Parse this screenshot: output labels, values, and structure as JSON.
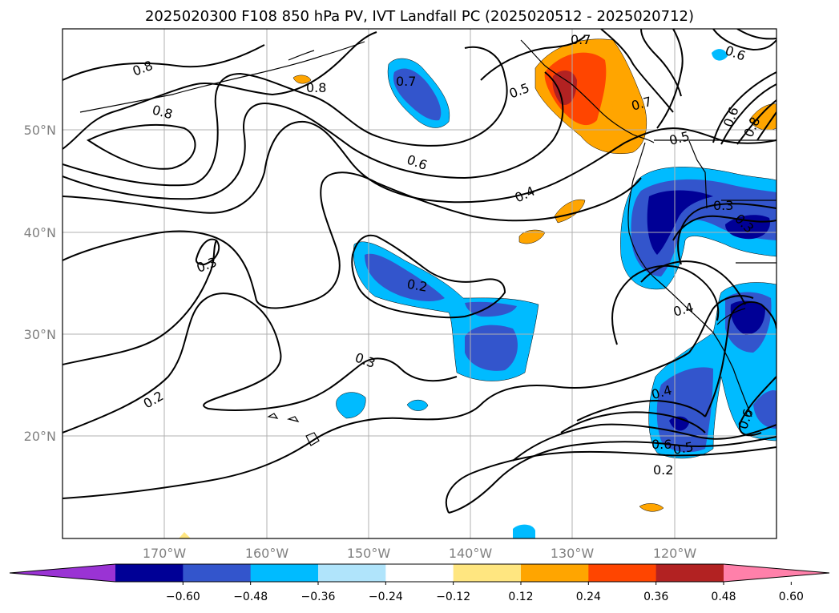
{
  "title": "2025020300 F108 850 hPa PV, IVT Landfall PC (2025020512 - 2025020712)",
  "axes": {
    "lat_labels": [
      "50°N",
      "40°N",
      "30°N",
      "20°N"
    ],
    "lon_labels": [
      "170°W",
      "160°W",
      "150°W",
      "140°W",
      "130°W",
      "120°W"
    ]
  },
  "colorbar": {
    "ticks": [
      "−0.60",
      "−0.48",
      "−0.36",
      "−0.24",
      "−0.12",
      "0.12",
      "0.24",
      "0.36",
      "0.48",
      "0.60"
    ],
    "colors": [
      "#9a33d4",
      "#000096",
      "#3355cc",
      "#00bbff",
      "#b0e4fb",
      "#ffffff",
      "#ffe680",
      "#ffa500",
      "#ff4500",
      "#b22222",
      "#ff80aa"
    ]
  },
  "contour_labels": [
    "0.8",
    "0.8",
    "0.8",
    "0.7",
    "0.7",
    "0.7",
    "0.6",
    "0.6",
    "0.5",
    "0.5",
    "0.4",
    "0.3",
    "0.3",
    "0.2",
    "0.3",
    "0.2",
    "0.4",
    "0.4",
    "0.3",
    "0.6",
    "0.6",
    "0.5",
    "0.2",
    "0.6",
    "0.8"
  ]
}
